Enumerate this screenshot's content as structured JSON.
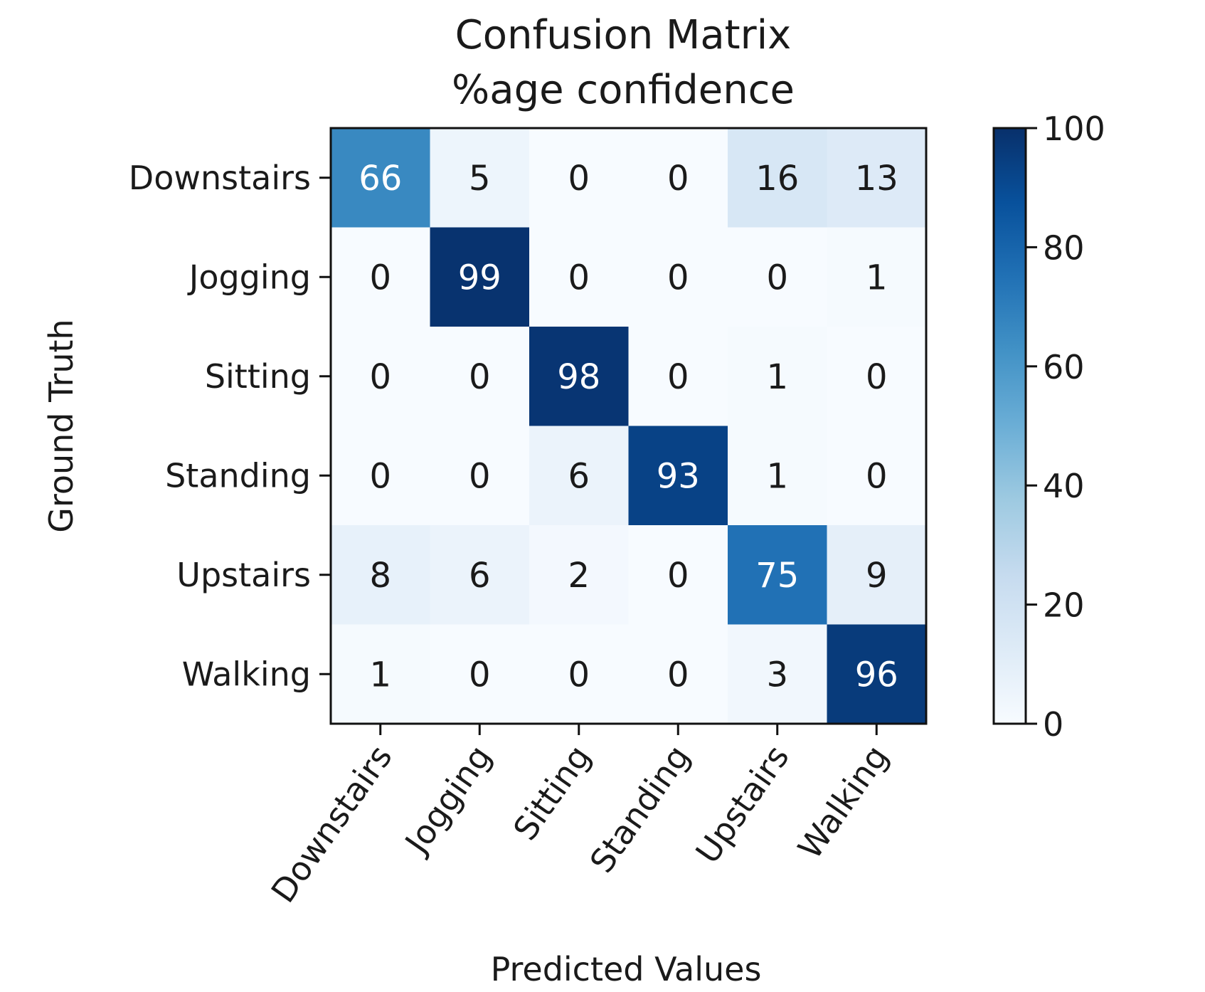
{
  "chart_data": {
    "type": "heatmap",
    "title": "Confusion Matrix",
    "subtitle": "%age confidence",
    "xlabel": "Predicted Values",
    "ylabel": "Ground Truth",
    "x_categories": [
      "Downstairs",
      "Jogging",
      "Sitting",
      "Standing",
      "Upstairs",
      "Walking"
    ],
    "y_categories": [
      "Downstairs",
      "Jogging",
      "Sitting",
      "Standing",
      "Upstairs",
      "Walking"
    ],
    "values": [
      [
        66,
        5,
        0,
        0,
        16,
        13
      ],
      [
        0,
        99,
        0,
        0,
        0,
        1
      ],
      [
        0,
        0,
        98,
        0,
        1,
        0
      ],
      [
        0,
        0,
        6,
        93,
        1,
        0
      ],
      [
        8,
        6,
        2,
        0,
        75,
        9
      ],
      [
        1,
        0,
        0,
        0,
        3,
        96
      ]
    ],
    "colorbar": {
      "min": 0,
      "max": 100,
      "ticks": [
        0,
        20,
        40,
        60,
        80,
        100
      ]
    },
    "colormap": "Blues",
    "colormap_stops": [
      "#f7fbff",
      "#deebf7",
      "#c6dbef",
      "#9ecae1",
      "#6baed6",
      "#4292c6",
      "#2171b5",
      "#08519c",
      "#08306b"
    ],
    "grid": false
  }
}
